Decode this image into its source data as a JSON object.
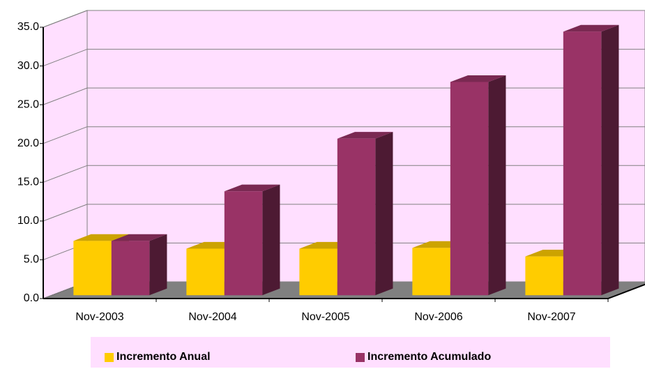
{
  "chart_data": {
    "type": "bar3d",
    "categories": [
      "Nov-2003",
      "Nov-2004",
      "Nov-2005",
      "Nov-2006",
      "Nov-2007"
    ],
    "series": [
      {
        "name": "Incremento Anual",
        "color": "#ffcc00",
        "values": [
          7.0,
          6.0,
          6.0,
          6.1,
          5.0
        ]
      },
      {
        "name": "Incremento Acumulado",
        "color": "#993366",
        "values": [
          7.0,
          13.4,
          20.2,
          27.5,
          34.0
        ]
      }
    ],
    "ylim": [
      0,
      35
    ],
    "yticks": [
      {
        "value": 0,
        "label": "0.0"
      },
      {
        "value": 5,
        "label": "5.0"
      },
      {
        "value": 10,
        "label": "10.0"
      },
      {
        "value": 15,
        "label": "15.0"
      },
      {
        "value": 20,
        "label": "20.0"
      },
      {
        "value": 25,
        "label": "25.0"
      },
      {
        "value": 30,
        "label": "30.0"
      },
      {
        "value": 35,
        "label": "35.0"
      }
    ],
    "grid": true,
    "legend": "bottom"
  }
}
